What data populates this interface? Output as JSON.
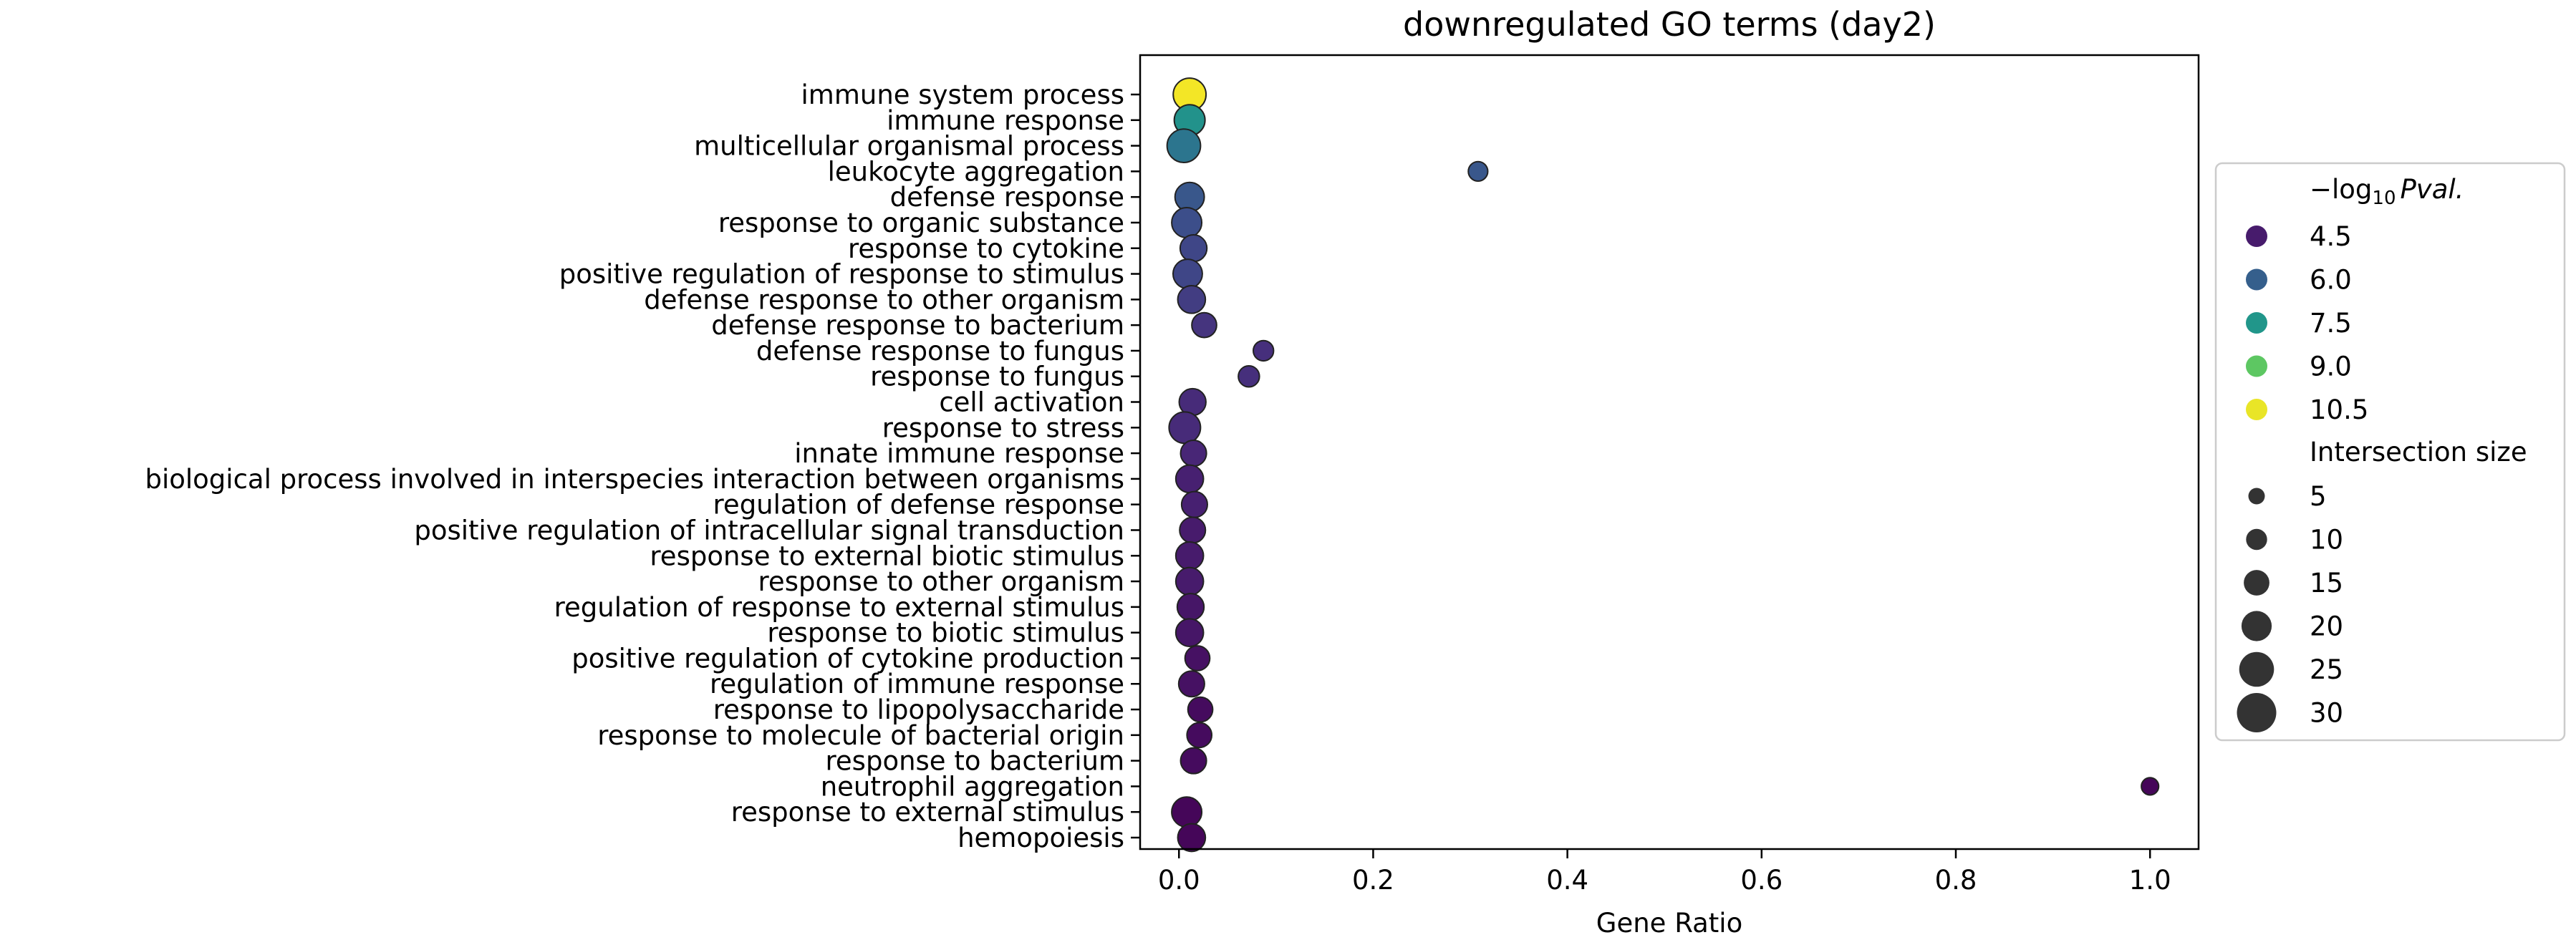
{
  "chart_data": {
    "type": "scatter",
    "title": "downregulated GO terms (day2)",
    "xlabel": "Gene Ratio",
    "ylabel": "",
    "xlim": [
      -0.04,
      1.05
    ],
    "xticks": [
      0.0,
      0.2,
      0.4,
      0.6,
      0.8,
      1.0
    ],
    "xtick_labels": [
      "0.0",
      "0.2",
      "0.4",
      "0.6",
      "0.8",
      "1.0"
    ],
    "grid": false,
    "legend_position": "outside-right",
    "color_scale": {
      "label_prefix": "−log",
      "label_sub": "10",
      "label_var": "Pval.",
      "min": 4.0,
      "max": 10.7,
      "colormap": "viridis",
      "legend_values": [
        4.5,
        6.0,
        7.5,
        9.0,
        10.5
      ],
      "legend_labels": [
        "4.5",
        "6.0",
        "7.5",
        "9.0",
        "10.5"
      ]
    },
    "size_scale": {
      "label": "Intersection size",
      "legend_values": [
        5,
        10,
        15,
        20,
        25,
        30
      ],
      "legend_labels": [
        "5",
        "10",
        "15",
        "20",
        "25",
        "30"
      ]
    },
    "points": [
      {
        "term": "immune system process",
        "gene_ratio": 0.011,
        "neg_log10_pval": 10.6,
        "size": 32
      },
      {
        "term": "immune response",
        "gene_ratio": 0.011,
        "neg_log10_pval": 7.4,
        "size": 26
      },
      {
        "term": "multicellular organismal process",
        "gene_ratio": 0.005,
        "neg_log10_pval": 6.6,
        "size": 34
      },
      {
        "term": "leukocyte aggregation",
        "gene_ratio": 0.308,
        "neg_log10_pval": 5.8,
        "size": 4
      },
      {
        "term": "defense response",
        "gene_ratio": 0.011,
        "neg_log10_pval": 5.8,
        "size": 22
      },
      {
        "term": "response to organic substance",
        "gene_ratio": 0.008,
        "neg_log10_pval": 5.6,
        "size": 24
      },
      {
        "term": "response to cytokine",
        "gene_ratio": 0.015,
        "neg_log10_pval": 5.4,
        "size": 16
      },
      {
        "term": "positive regulation of response to stimulus",
        "gene_ratio": 0.009,
        "neg_log10_pval": 5.4,
        "size": 22
      },
      {
        "term": "defense response to other organism",
        "gene_ratio": 0.013,
        "neg_log10_pval": 5.2,
        "size": 18
      },
      {
        "term": "defense response to bacterium",
        "gene_ratio": 0.026,
        "neg_log10_pval": 5.0,
        "size": 12
      },
      {
        "term": "defense response to fungus",
        "gene_ratio": 0.087,
        "neg_log10_pval": 4.9,
        "size": 5
      },
      {
        "term": "response to fungus",
        "gene_ratio": 0.072,
        "neg_log10_pval": 4.9,
        "size": 6
      },
      {
        "term": "cell activation",
        "gene_ratio": 0.014,
        "neg_log10_pval": 4.8,
        "size": 16
      },
      {
        "term": "response to stress",
        "gene_ratio": 0.006,
        "neg_log10_pval": 4.8,
        "size": 28
      },
      {
        "term": "innate immune response",
        "gene_ratio": 0.015,
        "neg_log10_pval": 4.7,
        "size": 14
      },
      {
        "term": "biological process involved in interspecies interaction between organisms",
        "gene_ratio": 0.011,
        "neg_log10_pval": 4.6,
        "size": 18
      },
      {
        "term": "regulation of defense response",
        "gene_ratio": 0.016,
        "neg_log10_pval": 4.6,
        "size": 14
      },
      {
        "term": "positive regulation of intracellular signal transduction",
        "gene_ratio": 0.014,
        "neg_log10_pval": 4.5,
        "size": 14
      },
      {
        "term": "response to external biotic stimulus",
        "gene_ratio": 0.011,
        "neg_log10_pval": 4.5,
        "size": 18
      },
      {
        "term": "response to other organism",
        "gene_ratio": 0.011,
        "neg_log10_pval": 4.5,
        "size": 18
      },
      {
        "term": "regulation of response to external stimulus",
        "gene_ratio": 0.012,
        "neg_log10_pval": 4.4,
        "size": 16
      },
      {
        "term": "response to biotic stimulus",
        "gene_ratio": 0.011,
        "neg_log10_pval": 4.4,
        "size": 18
      },
      {
        "term": "positive regulation of cytokine production",
        "gene_ratio": 0.019,
        "neg_log10_pval": 4.3,
        "size": 12
      },
      {
        "term": "regulation of immune response",
        "gene_ratio": 0.013,
        "neg_log10_pval": 4.3,
        "size": 14
      },
      {
        "term": "response to lipopolysaccharide",
        "gene_ratio": 0.022,
        "neg_log10_pval": 4.2,
        "size": 12
      },
      {
        "term": "response to molecule of bacterial origin",
        "gene_ratio": 0.021,
        "neg_log10_pval": 4.2,
        "size": 12
      },
      {
        "term": "response to bacterium",
        "gene_ratio": 0.015,
        "neg_log10_pval": 4.2,
        "size": 14
      },
      {
        "term": "neutrophil aggregation",
        "gene_ratio": 1.0,
        "neg_log10_pval": 4.1,
        "size": 2
      },
      {
        "term": "response to external stimulus",
        "gene_ratio": 0.008,
        "neg_log10_pval": 4.1,
        "size": 24
      },
      {
        "term": "hemopoiesis",
        "gene_ratio": 0.013,
        "neg_log10_pval": 4.1,
        "size": 18
      }
    ]
  }
}
